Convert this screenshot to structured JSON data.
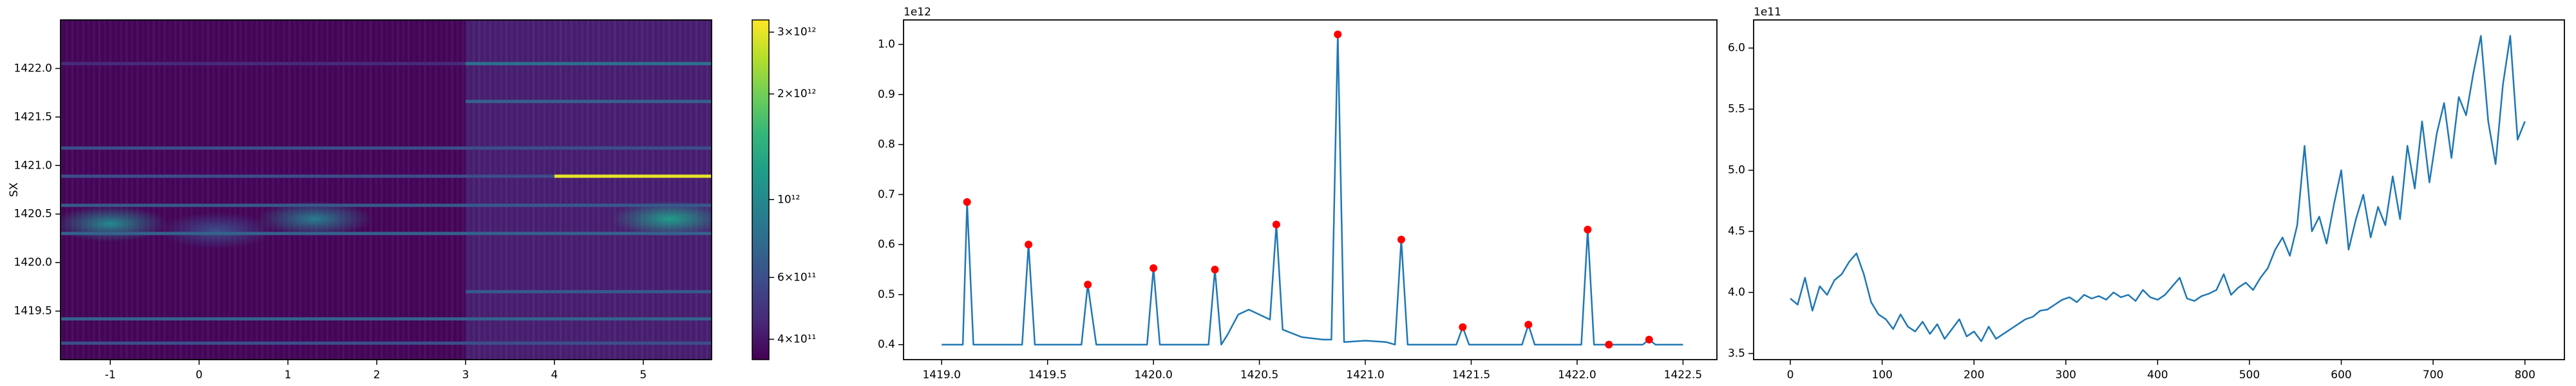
{
  "chart_data": [
    {
      "type": "heatmap",
      "ylabel": "SX",
      "xlim": [
        -1.56,
        5.77
      ],
      "ylim": [
        1419.0,
        1422.5
      ],
      "xticks": [
        -1,
        0,
        1,
        2,
        3,
        4,
        5
      ],
      "yticks": [
        {
          "value": 1419.5,
          "label": "1419.5"
        },
        {
          "value": 1420,
          "label": "1420.0"
        },
        {
          "value": 1420.5,
          "label": "1420.5"
        },
        {
          "value": 1421,
          "label": "1421.0"
        },
        {
          "value": 1421.5,
          "label": "1421.5"
        },
        {
          "value": 1422,
          "label": "1422.0"
        }
      ],
      "colormap": "viridis",
      "color_scale": "log",
      "background_value": 360000000000,
      "bands": [
        {
          "x": [
            3.0,
            5.77
          ],
          "value": 420000000000
        }
      ],
      "stripes": [
        {
          "y": 1422.05,
          "x": [
            -1.56,
            3.0
          ],
          "value": 460000000000
        },
        {
          "y": 1422.05,
          "x": [
            3.0,
            5.77
          ],
          "value": 800000000000
        },
        {
          "y": 1421.66,
          "x": [
            3.0,
            5.77
          ],
          "value": 700000000000
        },
        {
          "y": 1421.18,
          "x": [
            -1.56,
            5.77
          ],
          "value": 600000000000
        },
        {
          "y": 1420.89,
          "x": [
            -1.56,
            4.0
          ],
          "value": 600000000000
        },
        {
          "y": 1420.89,
          "x": [
            4.0,
            5.77
          ],
          "value": 3000000000000
        },
        {
          "y": 1420.59,
          "x": [
            -1.56,
            5.77
          ],
          "value": 650000000000
        },
        {
          "y": 1420.3,
          "x": [
            -1.56,
            5.77
          ],
          "value": 700000000000
        },
        {
          "y": 1419.7,
          "x": [
            3.0,
            5.77
          ],
          "value": 650000000000
        },
        {
          "y": 1419.42,
          "x": [
            -1.56,
            5.77
          ],
          "value": 700000000000
        },
        {
          "y": 1419.17,
          "x": [
            -1.56,
            5.77
          ],
          "value": 600000000000
        }
      ],
      "blobs": [
        {
          "x": -1.0,
          "y": 1420.4,
          "value": 1000000000000
        },
        {
          "x": 0.2,
          "y": 1420.33,
          "value": 600000000000
        },
        {
          "x": 1.3,
          "y": 1420.45,
          "value": 900000000000
        },
        {
          "x": 5.3,
          "y": 1420.45,
          "value": 1200000000000
        }
      ],
      "colorbar": {
        "lim": [
          350000000000,
          3250000000000
        ],
        "ticks": [
          {
            "value": 400000000000,
            "label": "4×10¹¹"
          },
          {
            "value": 600000000000,
            "label": "6×10¹¹"
          },
          {
            "value": 1000000000000,
            "label": "10¹²"
          },
          {
            "value": 2000000000000,
            "label": "2×10¹²"
          },
          {
            "value": 3000000000000,
            "label": "3×10¹²"
          }
        ]
      }
    },
    {
      "type": "line",
      "offset_text": "1e12",
      "color": "#1f77b4",
      "xlim": [
        1418.82,
        1422.66
      ],
      "ylim": [
        0.37,
        1.049
      ],
      "xticks": [
        {
          "value": 1419,
          "label": "1419.0"
        },
        {
          "value": 1419.5,
          "label": "1419.5"
        },
        {
          "value": 1420,
          "label": "1420.0"
        },
        {
          "value": 1420.5,
          "label": "1420.5"
        },
        {
          "value": 1421,
          "label": "1421.0"
        },
        {
          "value": 1421.5,
          "label": "1421.5"
        },
        {
          "value": 1422,
          "label": "1422.0"
        },
        {
          "value": 1422.5,
          "label": "1422.5"
        }
      ],
      "yticks": [
        0.4,
        0.5,
        0.6,
        0.7,
        0.8,
        0.9,
        {
          "value": 1.0,
          "label": "1.0"
        }
      ],
      "x": [
        1419.0,
        1419.1,
        1419.12,
        1419.15,
        1419.38,
        1419.41,
        1419.44,
        1419.66,
        1419.69,
        1419.73,
        1419.97,
        1420.0,
        1420.03,
        1420.26,
        1420.29,
        1420.32,
        1420.35,
        1420.4,
        1420.45,
        1420.5,
        1420.55,
        1420.58,
        1420.61,
        1420.7,
        1420.8,
        1420.84,
        1420.87,
        1420.9,
        1421.0,
        1421.1,
        1421.14,
        1421.17,
        1421.2,
        1421.43,
        1421.46,
        1421.49,
        1421.74,
        1421.77,
        1421.8,
        1422.02,
        1422.05,
        1422.08,
        1422.15,
        1422.31,
        1422.34,
        1422.37,
        1422.5
      ],
      "values": [
        0.4,
        0.4,
        0.685,
        0.4,
        0.4,
        0.6,
        0.4,
        0.4,
        0.52,
        0.4,
        0.4,
        0.553,
        0.4,
        0.4,
        0.55,
        0.4,
        0.42,
        0.46,
        0.47,
        0.46,
        0.45,
        0.64,
        0.43,
        0.415,
        0.41,
        0.41,
        1.02,
        0.405,
        0.408,
        0.405,
        0.4,
        0.61,
        0.4,
        0.4,
        0.435,
        0.4,
        0.4,
        0.44,
        0.4,
        0.4,
        0.63,
        0.4,
        0.4,
        0.4,
        0.41,
        0.4,
        0.4
      ],
      "peaks": {
        "color": "#ff0000",
        "x": [
          1419.12,
          1419.41,
          1419.69,
          1420.0,
          1420.29,
          1420.58,
          1420.87,
          1421.17,
          1421.46,
          1421.77,
          1422.05,
          1422.15,
          1422.34
        ],
        "values": [
          0.685,
          0.6,
          0.52,
          0.553,
          0.55,
          0.64,
          1.02,
          0.61,
          0.435,
          0.44,
          0.63,
          0.4,
          0.41
        ]
      }
    },
    {
      "type": "line",
      "offset_text": "1e11",
      "color": "#1f77b4",
      "xlim": [
        -40,
        843
      ],
      "ylim": [
        3.45,
        6.23
      ],
      "xticks": [
        0,
        100,
        200,
        300,
        400,
        500,
        600,
        700,
        800
      ],
      "yticks": [
        3.5,
        {
          "value": 4.0,
          "label": "4.0"
        },
        4.5,
        {
          "value": 5.0,
          "label": "5.0"
        },
        5.5,
        {
          "value": 6.0,
          "label": "6.0"
        }
      ],
      "x": [
        0,
        8,
        16,
        24,
        32,
        40,
        48,
        56,
        64,
        72,
        80,
        88,
        96,
        104,
        112,
        120,
        128,
        136,
        144,
        152,
        160,
        168,
        176,
        184,
        192,
        200,
        208,
        216,
        224,
        232,
        240,
        248,
        256,
        264,
        272,
        280,
        288,
        296,
        304,
        312,
        320,
        328,
        336,
        344,
        352,
        360,
        368,
        376,
        384,
        392,
        400,
        408,
        416,
        424,
        432,
        440,
        448,
        456,
        464,
        472,
        480,
        488,
        496,
        504,
        512,
        520,
        528,
        536,
        544,
        552,
        560,
        568,
        576,
        584,
        592,
        600,
        608,
        616,
        624,
        632,
        640,
        648,
        656,
        664,
        672,
        680,
        688,
        696,
        704,
        712,
        720,
        728,
        736,
        744,
        752,
        760,
        768,
        776,
        784,
        792,
        800
      ],
      "values": [
        3.95,
        3.9,
        4.12,
        3.85,
        4.05,
        3.98,
        4.1,
        4.15,
        4.25,
        4.32,
        4.15,
        3.92,
        3.82,
        3.78,
        3.7,
        3.82,
        3.72,
        3.68,
        3.76,
        3.66,
        3.74,
        3.62,
        3.7,
        3.78,
        3.64,
        3.68,
        3.6,
        3.72,
        3.62,
        3.66,
        3.7,
        3.74,
        3.78,
        3.8,
        3.85,
        3.86,
        3.9,
        3.94,
        3.96,
        3.92,
        3.98,
        3.95,
        3.97,
        3.94,
        4.0,
        3.96,
        3.98,
        3.93,
        4.02,
        3.96,
        3.94,
        3.98,
        4.05,
        4.12,
        3.95,
        3.93,
        3.97,
        3.99,
        4.02,
        4.15,
        3.98,
        4.04,
        4.08,
        4.02,
        4.12,
        4.2,
        4.35,
        4.45,
        4.3,
        4.55,
        5.2,
        4.5,
        4.62,
        4.4,
        4.72,
        5.0,
        4.35,
        4.6,
        4.8,
        4.45,
        4.7,
        4.55,
        4.95,
        4.6,
        5.2,
        4.85,
        5.4,
        4.9,
        5.3,
        5.55,
        5.1,
        5.6,
        5.45,
        5.8,
        6.1,
        5.4,
        5.05,
        5.7,
        6.1,
        5.25,
        5.4
      ]
    }
  ]
}
